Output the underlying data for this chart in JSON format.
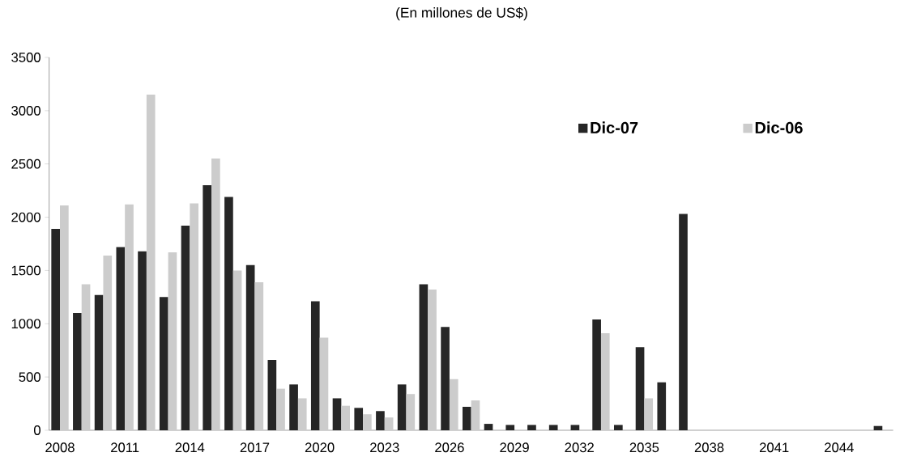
{
  "chart_data": {
    "type": "bar",
    "subtitle": "(En millones de US$)",
    "categories": [
      "2008",
      null,
      null,
      "2011",
      null,
      null,
      "2014",
      null,
      null,
      "2017",
      null,
      null,
      "2020",
      null,
      null,
      "2023",
      null,
      null,
      "2026",
      null,
      null,
      "2029",
      null,
      null,
      "2032",
      null,
      null,
      "2035",
      null,
      null,
      "2038",
      null,
      null,
      "2041",
      null,
      null,
      "2044",
      null,
      null
    ],
    "series": [
      {
        "name": "Dic-07",
        "color": "#262626",
        "values": [
          1890,
          1100,
          1270,
          1720,
          1680,
          1250,
          1920,
          2300,
          2190,
          1550,
          660,
          430,
          1210,
          300,
          210,
          180,
          430,
          1370,
          970,
          220,
          60,
          50,
          50,
          50,
          50,
          1040,
          50,
          780,
          450,
          2030,
          0,
          0,
          0,
          0,
          0,
          0,
          0,
          0,
          40
        ]
      },
      {
        "name": "Dic-06",
        "color": "#cccccc",
        "values": [
          2110,
          1370,
          1640,
          2120,
          3150,
          1670,
          2130,
          2550,
          1500,
          1390,
          390,
          300,
          870,
          230,
          150,
          120,
          340,
          1320,
          480,
          280,
          0,
          0,
          0,
          0,
          0,
          910,
          0,
          300,
          0,
          0,
          0,
          0,
          0,
          0,
          0,
          0,
          0,
          0,
          0
        ]
      }
    ],
    "ylim": [
      0,
      3500
    ],
    "yticks": [
      0,
      500,
      1000,
      1500,
      2000,
      2500,
      3000,
      3500
    ],
    "grid": false,
    "legend": "top right"
  }
}
